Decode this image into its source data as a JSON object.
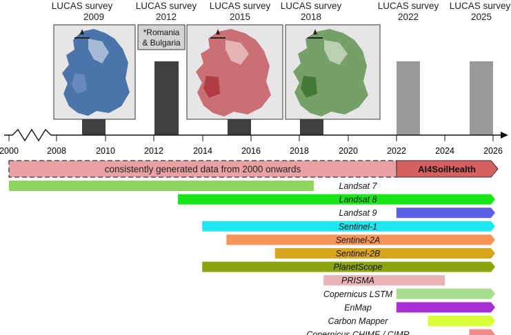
{
  "surveys": [
    {
      "title": "LUCAS survey",
      "year": "2009"
    },
    {
      "title": "LUCAS survey",
      "year": "2012"
    },
    {
      "title": "LUCAS survey",
      "year": "2015"
    },
    {
      "title": "LUCAS survey",
      "year": "2018"
    },
    {
      "title": "LUCAS survey",
      "year": "2022"
    },
    {
      "title": "LUCAS survey",
      "year": "2025"
    }
  ],
  "survey_note": [
    "*Romania",
    "& Bulgaria"
  ],
  "maps": [
    {
      "name": "map-2009",
      "tint": "#2f5f9e"
    },
    {
      "name": "map-2015",
      "tint": "#c0474f"
    },
    {
      "name": "map-2018",
      "tint": "#4f8a3e"
    }
  ],
  "axis_ticks": [
    "2000",
    "2008",
    "2010",
    "2012",
    "2014",
    "2016",
    "2018",
    "2020",
    "2022",
    "2024",
    "2026"
  ],
  "banner": {
    "main": "consistently generated data from 2000 onwards",
    "ai4": "AI4SoilHealth",
    "main_color": "#e9a1a3",
    "ai4_color": "#d66060"
  },
  "missions": [
    {
      "name": "Landsat 7",
      "start": 2000,
      "end": 2018.6,
      "arrow": false,
      "color": "#8fd45f"
    },
    {
      "name": "Landsat 8",
      "start": 2013,
      "end": 2026,
      "arrow": true,
      "color": "#19e619"
    },
    {
      "name": "Landsat 9",
      "start": 2022,
      "end": 2026,
      "arrow": true,
      "color": "#5a5fe6"
    },
    {
      "name": "Sentinel-1",
      "start": 2014,
      "end": 2026,
      "arrow": true,
      "color": "#1fe6f0"
    },
    {
      "name": "Sentinel-2A",
      "start": 2015,
      "end": 2026,
      "arrow": true,
      "color": "#f5955a"
    },
    {
      "name": "Sentinel-2B",
      "start": 2017,
      "end": 2026,
      "arrow": true,
      "color": "#d9a51c"
    },
    {
      "name": "PlanetScope",
      "start": 2014,
      "end": 2026,
      "arrow": true,
      "color": "#8aa50e"
    },
    {
      "name": "PRISMA",
      "start": 2019,
      "end": 2024,
      "arrow": false,
      "color": "#e8b3b5"
    },
    {
      "name": "Copernicus LSTM",
      "start": 2022,
      "end": 2026,
      "arrow": true,
      "color": "#a9dd8e"
    },
    {
      "name": "EnMap",
      "start": 2022,
      "end": 2026,
      "arrow": true,
      "color": "#a52fd2"
    },
    {
      "name": "Carbon Mapper",
      "start": 2023.3,
      "end": 2026,
      "arrow": true,
      "color": "#d7ff33"
    },
    {
      "name": "Copernicus CHIME / CIMR",
      "start": 2025,
      "end": 2026,
      "arrow": true,
      "color": "#f28a8a"
    }
  ]
}
